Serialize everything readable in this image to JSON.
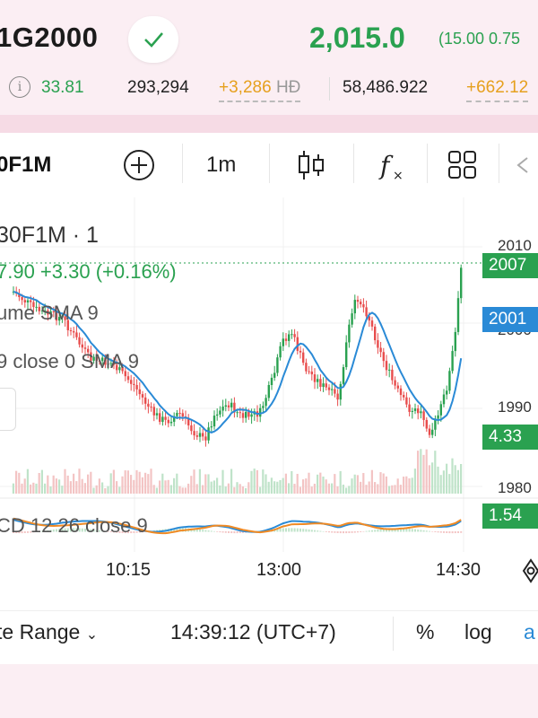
{
  "header": {
    "symbol": "1G2000",
    "price": "2,015.0",
    "change": "(15.00 0.75"
  },
  "stats": {
    "value1": "33.81",
    "value2": "293,294",
    "value3": "+3,286",
    "value3_unit": "HĐ",
    "value4": "58,486.922",
    "value5": "+662.12"
  },
  "toolbar": {
    "symbol": "0F1M",
    "interval": "1m"
  },
  "chart": {
    "legend_title": "30F1M · 1",
    "legend_price": "7.90  +3.30 (+0.16%)",
    "volume_label": "ume SMA 9",
    "sma_label": "9 close 0 SMA 9",
    "macd_label": "CD 12 26 close 9",
    "price_ticks": [
      "2010",
      "2000",
      "1990",
      "1980"
    ],
    "tags": {
      "last_price": "2007",
      "sma": "2001",
      "volume": "4.33",
      "macd": "1.54"
    },
    "time_labels": [
      "10:15",
      "13:00",
      "14:30"
    ],
    "colors": {
      "up": "#2aa150",
      "down": "#e84d4d",
      "sma": "#2a8ad6",
      "signal": "#f08a24"
    }
  },
  "bottom": {
    "range_label": "te Range",
    "clock": "14:39:12 (UTC+7)",
    "percent": "%",
    "log": "log",
    "auto": "a"
  }
}
